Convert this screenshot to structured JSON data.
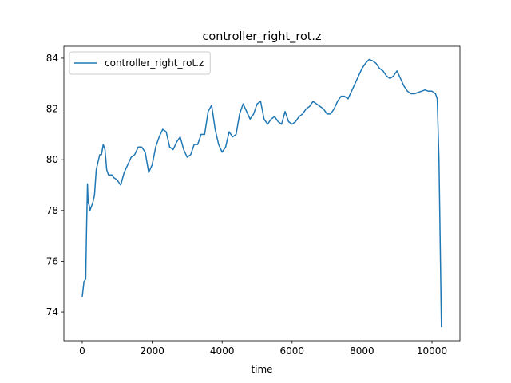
{
  "chart_data": {
    "type": "line",
    "title": "controller_right_rot.z",
    "xlabel": "time",
    "x": [
      0,
      50,
      100,
      120,
      150,
      170,
      200,
      220,
      300,
      350,
      400,
      450,
      500,
      550,
      600,
      650,
      700,
      750,
      850,
      900,
      1000,
      1100,
      1200,
      1300,
      1400,
      1500,
      1600,
      1700,
      1800,
      1900,
      2000,
      2100,
      2200,
      2300,
      2400,
      2500,
      2600,
      2700,
      2800,
      2900,
      3000,
      3100,
      3200,
      3300,
      3400,
      3500,
      3600,
      3700,
      3800,
      3900,
      4000,
      4100,
      4200,
      4300,
      4400,
      4500,
      4600,
      4700,
      4800,
      4900,
      5000,
      5100,
      5200,
      5300,
      5400,
      5500,
      5600,
      5700,
      5800,
      5900,
      6000,
      6100,
      6200,
      6300,
      6400,
      6500,
      6600,
      6700,
      6800,
      6900,
      7000,
      7100,
      7200,
      7300,
      7400,
      7500,
      7600,
      7700,
      7800,
      7900,
      8000,
      8100,
      8200,
      8300,
      8400,
      8500,
      8600,
      8700,
      8800,
      8900,
      9000,
      9100,
      9200,
      9300,
      9400,
      9500,
      9600,
      9700,
      9800,
      9900,
      10000,
      10100,
      10150,
      10200,
      10270
    ],
    "series": [
      {
        "name": "controller_right_rot.z",
        "color": "#1f77b4",
        "values": [
          74.6,
          75.2,
          75.3,
          77,
          79.05,
          78.3,
          78.2,
          78.0,
          78.3,
          78.6,
          79.6,
          79.9,
          80.2,
          80.2,
          80.6,
          80.4,
          79.6,
          79.4,
          79.4,
          79.3,
          79.2,
          79.0,
          79.5,
          79.8,
          80.1,
          80.2,
          80.5,
          80.5,
          80.3,
          79.5,
          79.8,
          80.5,
          80.9,
          81.2,
          81.1,
          80.5,
          80.4,
          80.7,
          80.9,
          80.4,
          80.1,
          80.2,
          80.6,
          80.6,
          81.0,
          81.0,
          81.9,
          82.15,
          81.2,
          80.6,
          80.3,
          80.5,
          81.1,
          80.9,
          81.0,
          81.8,
          82.2,
          81.9,
          81.6,
          81.8,
          82.2,
          82.3,
          81.6,
          81.4,
          81.6,
          81.7,
          81.5,
          81.4,
          81.9,
          81.5,
          81.4,
          81.5,
          81.7,
          81.8,
          82.0,
          82.1,
          82.3,
          82.2,
          82.1,
          82.0,
          81.8,
          81.8,
          82.0,
          82.3,
          82.5,
          82.5,
          82.4,
          82.7,
          83.0,
          83.3,
          83.6,
          83.8,
          83.95,
          83.9,
          83.8,
          83.6,
          83.5,
          83.3,
          83.2,
          83.3,
          83.5,
          83.2,
          82.9,
          82.7,
          82.6,
          82.6,
          82.65,
          82.7,
          82.75,
          82.7,
          82.7,
          82.6,
          82.4,
          80,
          73.4
        ]
      }
    ],
    "xlim": [
      -525,
      10799
    ],
    "ylim": [
      72.87,
      84.47
    ],
    "xticks": [
      0,
      2000,
      4000,
      6000,
      8000,
      10000
    ],
    "yticks": [
      74,
      76,
      78,
      80,
      82,
      84
    ],
    "legend": "upper left"
  }
}
